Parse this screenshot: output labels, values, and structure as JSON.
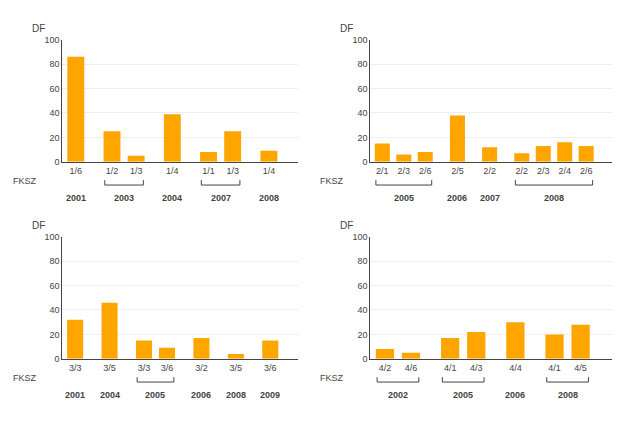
{
  "chart_data": [
    {
      "type": "bar",
      "ylabel": "DF",
      "xlabel": "FKSZ",
      "color": "#FFA500",
      "grid": true,
      "ylim": [
        0,
        100
      ],
      "yticks": [
        0,
        20,
        40,
        60,
        80,
        100
      ],
      "categories": [
        "1/6",
        "1/2",
        "1/3",
        "1/4",
        "1/1",
        "1/3",
        "1/4"
      ],
      "values": [
        86,
        25,
        5,
        39,
        8,
        25,
        9
      ],
      "groups": [
        {
          "label": "2001",
          "indices": [
            0
          ]
        },
        {
          "label": "2003",
          "indices": [
            1,
            2
          ]
        },
        {
          "label": "2004",
          "indices": [
            3
          ]
        },
        {
          "label": "2007",
          "indices": [
            4,
            5
          ]
        },
        {
          "label": "2008",
          "indices": [
            6
          ]
        }
      ]
    },
    {
      "type": "bar",
      "ylabel": "DF",
      "xlabel": "FKSZ",
      "color": "#FFA500",
      "grid": true,
      "ylim": [
        0,
        100
      ],
      "yticks": [
        0,
        20,
        40,
        60,
        80,
        100
      ],
      "categories": [
        "2/1",
        "2/3",
        "2/6",
        "2/5",
        "2/2",
        "2/2",
        "2/3",
        "2/4",
        "2/6"
      ],
      "values": [
        15,
        6,
        8,
        38,
        12,
        7,
        13,
        16,
        13
      ],
      "groups": [
        {
          "label": "2005",
          "indices": [
            0,
            1,
            2
          ]
        },
        {
          "label": "2006",
          "indices": [
            3
          ]
        },
        {
          "label": "2007",
          "indices": [
            4
          ]
        },
        {
          "label": "2008",
          "indices": [
            5,
            6,
            7,
            8
          ]
        }
      ]
    },
    {
      "type": "bar",
      "ylabel": "DF",
      "xlabel": "FKSZ",
      "color": "#FFA500",
      "grid": true,
      "ylim": [
        0,
        100
      ],
      "yticks": [
        0,
        20,
        40,
        60,
        80,
        100
      ],
      "categories": [
        "3/3",
        "3/5",
        "3/3",
        "3/6",
        "3/2",
        "3/5",
        "3/6"
      ],
      "values": [
        32,
        46,
        15,
        9,
        17,
        4,
        15
      ],
      "groups": [
        {
          "label": "2001",
          "indices": [
            0
          ]
        },
        {
          "label": "2004",
          "indices": [
            1
          ]
        },
        {
          "label": "2005",
          "indices": [
            2,
            3
          ]
        },
        {
          "label": "2006",
          "indices": [
            4
          ]
        },
        {
          "label": "2008",
          "indices": [
            5
          ]
        },
        {
          "label": "2009",
          "indices": [
            6
          ]
        }
      ]
    },
    {
      "type": "bar",
      "ylabel": "DF",
      "xlabel": "FKSZ",
      "color": "#FFA500",
      "grid": true,
      "ylim": [
        0,
        100
      ],
      "yticks": [
        0,
        20,
        40,
        60,
        80,
        100
      ],
      "categories": [
        "4/2",
        "4/6",
        "4/1",
        "4/3",
        "4/4",
        "4/1",
        "4/5"
      ],
      "values": [
        8,
        5,
        17,
        22,
        30,
        20,
        28
      ],
      "groups": [
        {
          "label": "2002",
          "indices": [
            0,
            1
          ]
        },
        {
          "label": "2005",
          "indices": [
            2,
            3
          ]
        },
        {
          "label": "2006",
          "indices": [
            4
          ]
        },
        {
          "label": "2008",
          "indices": [
            5,
            6
          ]
        }
      ]
    }
  ]
}
